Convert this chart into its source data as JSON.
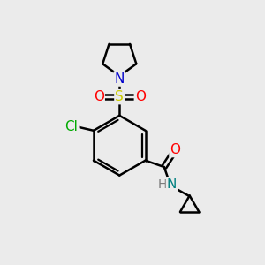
{
  "bg_color": "#ebebeb",
  "atom_colors": {
    "C": "#000000",
    "N_blue": "#0000cc",
    "N_teal": "#008080",
    "O": "#ff0000",
    "S": "#cccc00",
    "Cl": "#00aa00",
    "H": "#777777"
  },
  "bond_color": "#000000",
  "bond_width": 1.8,
  "font_size_atom": 10
}
